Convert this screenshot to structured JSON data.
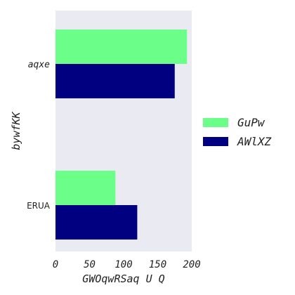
{
  "chart_data": {
    "type": "bar",
    "orientation": "horizontal",
    "categories": [
      "aqxe",
      "ERUA"
    ],
    "series": [
      {
        "name": "GuPw",
        "color": "#6bff8a",
        "values": [
          193,
          88
        ]
      },
      {
        "name": "AWlXZ",
        "color": "#000080",
        "values": [
          175,
          120
        ]
      }
    ],
    "xlabel": "GWOqwRSaq U Q",
    "ylabel": "bywfKK",
    "xlim": [
      0,
      200
    ],
    "xticks": [
      0,
      50,
      100,
      150,
      200
    ],
    "xtick_labels": [
      "0",
      "50",
      "100",
      "150",
      "200"
    ],
    "grid": false,
    "background": "#eaeaf2",
    "legend": "right"
  }
}
